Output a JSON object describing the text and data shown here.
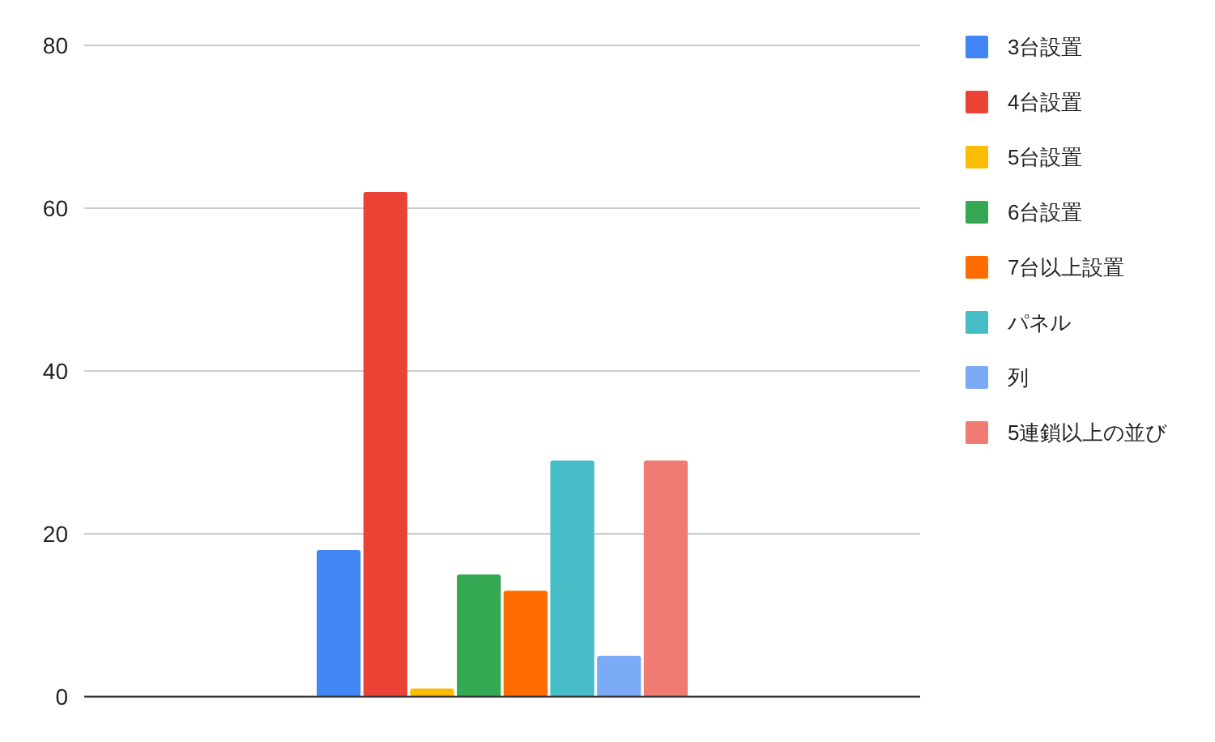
{
  "chart_data": {
    "type": "bar",
    "categories": [
      null
    ],
    "series": [
      {
        "name": "3台設置",
        "color": "#4285f4",
        "values": [
          18
        ]
      },
      {
        "name": "4台設置",
        "color": "#ea4335",
        "values": [
          62
        ]
      },
      {
        "name": "5台設置",
        "color": "#fbbc04",
        "values": [
          1
        ]
      },
      {
        "name": "6台設置",
        "color": "#34a853",
        "values": [
          15
        ]
      },
      {
        "name": "7台以上設置",
        "color": "#ff6d01",
        "values": [
          13
        ]
      },
      {
        "name": "パネル",
        "color": "#46bdc6",
        "values": [
          29
        ]
      },
      {
        "name": "列",
        "color": "#7baaf7",
        "values": [
          5
        ]
      },
      {
        "name": "5連鎖以上の並び",
        "color": "#f07b72",
        "values": [
          29
        ]
      }
    ],
    "ylim": [
      0,
      80
    ],
    "yticks": [
      0,
      20,
      40,
      60,
      80
    ],
    "grid": "y",
    "legend": "right"
  }
}
